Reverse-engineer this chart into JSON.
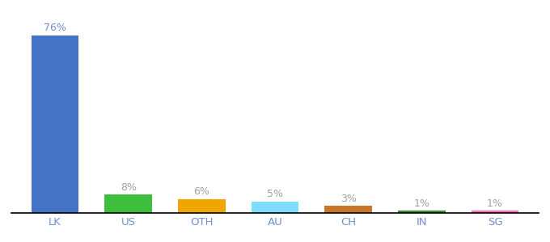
{
  "categories": [
    "LK",
    "US",
    "OTH",
    "AU",
    "CH",
    "IN",
    "SG"
  ],
  "values": [
    76,
    8,
    6,
    5,
    3,
    1,
    1
  ],
  "bar_colors": [
    "#4472C4",
    "#3DBE3D",
    "#F0A500",
    "#7FDBFF",
    "#C8762A",
    "#2D8C2D",
    "#FF69B4"
  ],
  "label_colors": [
    "#7090D0",
    "#A0A0A0",
    "#A0A0A0",
    "#A0A0A0",
    "#A0A0A0",
    "#A0A0A0",
    "#A0A0A0"
  ],
  "ylim": [
    0,
    88
  ],
  "bar_width": 0.65,
  "background_color": "#ffffff",
  "label_fontsize": 9,
  "tick_fontsize": 9.5,
  "tick_color": "#7090D0"
}
